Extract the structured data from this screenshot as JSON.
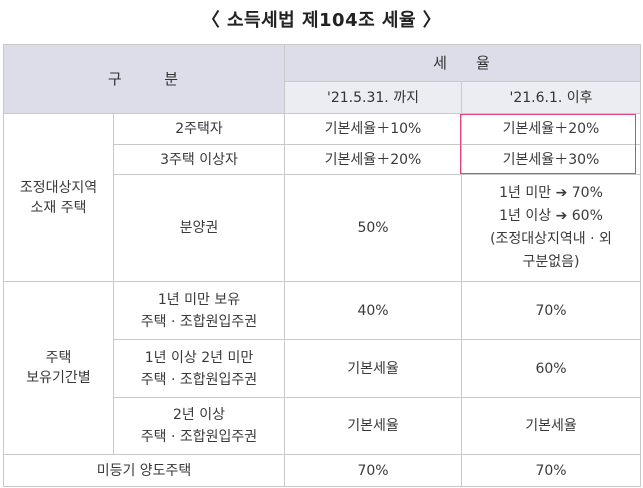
{
  "title": "〈 소득세법 제104조 세율 〉",
  "header": {
    "category": "구      분",
    "tax_rate": "세    율",
    "col_before": "'21.5.31. 까지",
    "col_after": "'21.6.1. 이후"
  },
  "groups": [
    {
      "label": [
        "조정대상지역",
        "소재 주택"
      ],
      "rows": [
        {
          "sub": [
            "2주택자"
          ],
          "before": "기본세율＋10%",
          "after": [
            "기본세율＋20%"
          ]
        },
        {
          "sub": [
            "3주택 이상자"
          ],
          "before": "기본세율＋20%",
          "after": [
            "기본세율＋30%"
          ]
        },
        {
          "sub": [
            "분양권"
          ],
          "before": "50%",
          "after": [
            "1년 미만 ➔ 70%",
            "1년 이상 ➔ 60%",
            "(조정대상지역내 · 외",
            "구분없음)"
          ]
        }
      ]
    },
    {
      "label": [
        "주택",
        "보유기간별"
      ],
      "rows": [
        {
          "sub": [
            "1년 미만 보유",
            "주택 · 조합원입주권"
          ],
          "before": "40%",
          "after": [
            "70%"
          ]
        },
        {
          "sub": [
            "1년 이상 2년 미만",
            "주택 · 조합원입주권"
          ],
          "before": "기본세율",
          "after": [
            "60%"
          ]
        },
        {
          "sub": [
            "2년 이상",
            "주택 · 조합원입주권"
          ],
          "before": "기본세율",
          "after": [
            "기본세율"
          ]
        }
      ]
    }
  ],
  "last_row": {
    "label": "미등기 양도주택",
    "before": "70%",
    "after": "70%"
  },
  "highlight_color": "#e0447c"
}
